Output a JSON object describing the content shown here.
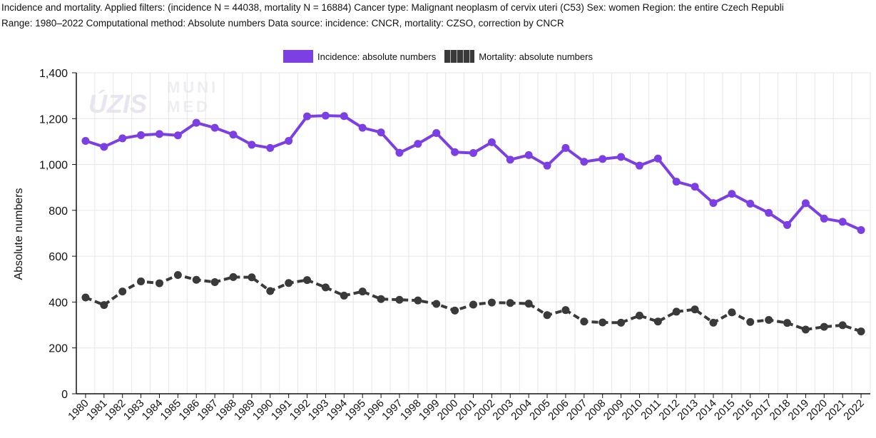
{
  "header": {
    "line1": "Incidence and mortality. Applied filters: (incidence N = 44038, mortality N = 16884) Cancer type: Malignant neoplasm of cervix uteri (C53) Sex: women Region: the entire Czech Republi",
    "line2": "Range: 1980–2022 Computational method: Absolute numbers Data source: incidence: CNCR, mortality: CZSO, correction by CNCR"
  },
  "legend": {
    "incidence": "Incidence: absolute numbers",
    "mortality": "Mortality: absolute numbers"
  },
  "watermark": {
    "logo1": "ÚZIS",
    "logo2a": "MUNI",
    "logo2b": "MED"
  },
  "colors": {
    "incidence": "#7b3fe4",
    "mortality": "#3a3a3a",
    "grid": "#e6e6e6"
  },
  "chart_data": {
    "type": "line",
    "ylabel": "Absolute numbers",
    "ylim": [
      0,
      1400
    ],
    "yticks": [
      0,
      200,
      400,
      600,
      800,
      1000,
      1200,
      1400
    ],
    "ytick_labels": [
      "0",
      "200",
      "400",
      "600",
      "800",
      "1,000",
      "1,200",
      "1,400"
    ],
    "grid": true,
    "legend_position": "top-center",
    "categories": [
      "1980",
      "1981",
      "1982",
      "1983",
      "1984",
      "1985",
      "1986",
      "1987",
      "1988",
      "1989",
      "1990",
      "1991",
      "1992",
      "1993",
      "1994",
      "1995",
      "1996",
      "1997",
      "1998",
      "1999",
      "2000",
      "2001",
      "2002",
      "2003",
      "2004",
      "2005",
      "2006",
      "2007",
      "2008",
      "2009",
      "2010",
      "2011",
      "2012",
      "2013",
      "2014",
      "2015",
      "2016",
      "2017",
      "2018",
      "2019",
      "2020",
      "2021",
      "2022"
    ],
    "series": [
      {
        "name": "Incidence: absolute numbers",
        "values": [
          1103,
          1077,
          1114,
          1128,
          1133,
          1127,
          1182,
          1160,
          1130,
          1086,
          1072,
          1103,
          1210,
          1213,
          1211,
          1160,
          1140,
          1051,
          1090,
          1137,
          1054,
          1050,
          1097,
          1021,
          1041,
          995,
          1072,
          1012,
          1024,
          1033,
          995,
          1026,
          925,
          903,
          832,
          872,
          829,
          789,
          736,
          831,
          764,
          750,
          714
        ]
      },
      {
        "name": "Mortality: absolute numbers",
        "values": [
          420,
          387,
          446,
          490,
          482,
          518,
          497,
          487,
          509,
          508,
          448,
          483,
          496,
          464,
          428,
          446,
          413,
          410,
          407,
          392,
          363,
          389,
          398,
          396,
          393,
          343,
          365,
          315,
          311,
          310,
          341,
          315,
          358,
          368,
          310,
          355,
          313,
          322,
          309,
          280,
          292,
          299,
          272
        ]
      }
    ]
  }
}
